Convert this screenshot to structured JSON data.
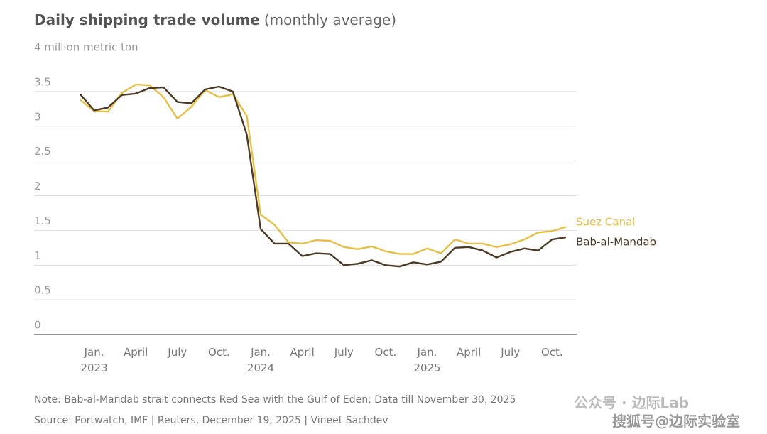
{
  "chart_data": {
    "type": "line",
    "title": "Daily shipping trade volume",
    "subtitle": "(monthly average)",
    "categories": [
      null,
      "Jan.\n2023",
      null,
      null,
      "April",
      null,
      null,
      "July",
      null,
      null,
      "Oct.",
      null,
      null,
      "Jan.\n2024",
      null,
      null,
      "April",
      null,
      null,
      "July",
      null,
      null,
      "Oct.",
      null,
      null,
      "Jan.\n2025",
      null,
      null,
      "April",
      null,
      null,
      "July",
      null,
      null,
      "Oct.",
      null
    ],
    "series": [
      {
        "name": "Suez Canal",
        "color": "#e6bf45",
        "values": [
          3.38,
          3.22,
          3.21,
          3.48,
          3.6,
          3.59,
          3.42,
          3.11,
          3.28,
          3.52,
          3.42,
          3.46,
          3.15,
          1.73,
          1.58,
          1.33,
          1.31,
          1.36,
          1.35,
          1.26,
          1.23,
          1.27,
          1.2,
          1.16,
          1.16,
          1.24,
          1.17,
          1.37,
          1.31,
          1.31,
          1.26,
          1.3,
          1.37,
          1.47,
          1.49,
          1.55
        ]
      },
      {
        "name": "Bab-al-Mandab",
        "color": "#4b3a24",
        "values": [
          3.46,
          3.23,
          3.27,
          3.45,
          3.47,
          3.55,
          3.56,
          3.35,
          3.33,
          3.53,
          3.57,
          3.5,
          2.88,
          1.52,
          1.31,
          1.31,
          1.13,
          1.17,
          1.16,
          1.0,
          1.02,
          1.07,
          1.0,
          0.98,
          1.04,
          1.01,
          1.05,
          1.25,
          1.26,
          1.21,
          1.11,
          1.19,
          1.24,
          1.21,
          1.37,
          1.4
        ]
      }
    ],
    "ylim": [
      0,
      4
    ],
    "yticks": [
      0,
      0.5,
      1,
      1.5,
      2,
      2.5,
      3,
      3.5,
      {
        "value": 4,
        "label": "4 million metric ton"
      }
    ],
    "grid": true,
    "notes": [
      "Note: Bab-al-Mandab strait connects Red Sea with the Gulf of Eden; Data till November 30, 2025",
      "Source: Portwatch, IMF | Reuters, December 19, 2025  | Vineet Sachdev"
    ]
  },
  "watermark": [
    "公众号 · 边际Lab",
    "搜狐号@边际实验室"
  ]
}
